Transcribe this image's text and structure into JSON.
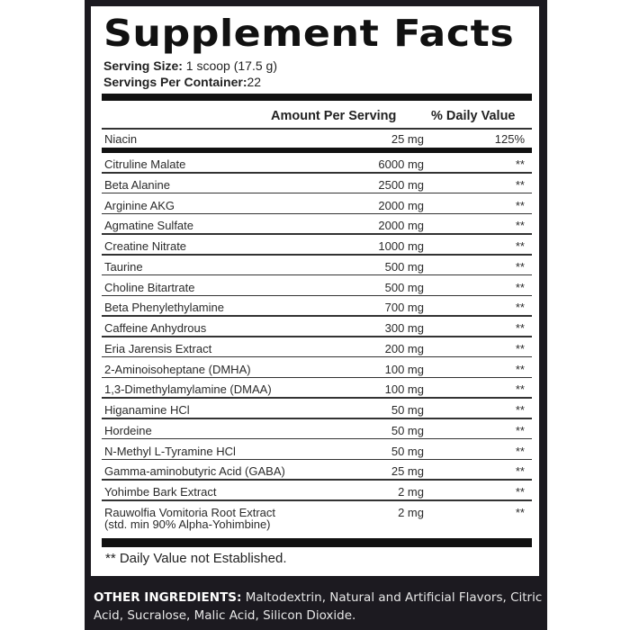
{
  "title": "Supplement Facts",
  "serving_size_label": "Serving Size:",
  "serving_size_value": " 1 scoop (17.5 g)",
  "servings_per_container_label": "Servings Per Container:",
  "servings_per_container_value": "22",
  "columns": {
    "amount": "Amount Per Serving",
    "daily_value": "% Daily Value"
  },
  "vitamins": [
    {
      "name": "Niacin",
      "amount": "25 mg",
      "dv": "125%"
    }
  ],
  "ingredients": [
    {
      "name": "Citruline Malate",
      "amount": "6000 mg",
      "dv": "**"
    },
    {
      "name": "Beta Alanine",
      "amount": "2500 mg",
      "dv": "**"
    },
    {
      "name": "Arginine AKG",
      "amount": "2000 mg",
      "dv": "**"
    },
    {
      "name": "Agmatine Sulfate",
      "amount": "2000 mg",
      "dv": "**"
    },
    {
      "name": "Creatine Nitrate",
      "amount": "1000 mg",
      "dv": "**"
    },
    {
      "name": "Taurine",
      "amount": "500 mg",
      "dv": "**"
    },
    {
      "name": "Choline Bitartrate",
      "amount": "500 mg",
      "dv": "**"
    },
    {
      "name": "Beta Phenylethylamine",
      "amount": "700 mg",
      "dv": "**"
    },
    {
      "name": "Caffeine Anhydrous",
      "amount": "300 mg",
      "dv": "**"
    },
    {
      "name": "Eria Jarensis Extract",
      "amount": "200 mg",
      "dv": "**"
    },
    {
      "name": "2-Aminoisoheptane (DMHA)",
      "amount": "100 mg",
      "dv": "**"
    },
    {
      "name": "1,3-Dimethylamylamine (DMAA)",
      "amount": "100 mg",
      "dv": "**"
    },
    {
      "name": "Higanamine HCl",
      "amount": "50 mg",
      "dv": "**"
    },
    {
      "name": "Hordeine",
      "amount": "50 mg",
      "dv": "**"
    },
    {
      "name": "N-Methyl L-Tyramine HCl",
      "amount": "50 mg",
      "dv": "**"
    },
    {
      "name": "Gamma-aminobutyric Acid (GABA)",
      "amount": "25 mg",
      "dv": "**"
    },
    {
      "name": "Yohimbe Bark Extract",
      "amount": "2 mg",
      "dv": "**"
    },
    {
      "name": "Rauwolfia Vomitoria Root Extract",
      "subname": "(std. min 90% Alpha-Yohimbine)",
      "amount": "2 mg",
      "dv": "**"
    }
  ],
  "footnote": "** Daily Value not Established.",
  "other_ingredients_label": "OTHER INGREDIENTS:",
  "other_ingredients_value": " Maltodextrin, Natural and Artificial Flavors, Citric Acid, Sucralose, Malic Acid, Silicon Dioxide."
}
